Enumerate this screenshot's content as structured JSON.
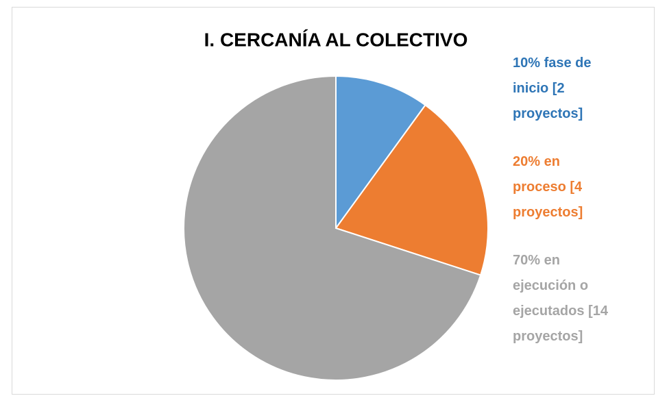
{
  "chart_data": {
    "type": "pie",
    "title": "I. CERCANÍA AL COLECTIVO",
    "values": [
      10,
      20,
      70
    ],
    "value_labels": [
      "10% fase de inicio [2 proyectos]",
      "20% en proceso [4 proyectos]",
      "70% en ejecución o ejecutados [14 proyectos]"
    ],
    "colors": [
      "#5b9bd5",
      "#ed7d31",
      "#a5a5a5"
    ],
    "label_colors": [
      "#2e75b6",
      "#ed7d31",
      "#a5a5a5"
    ]
  }
}
